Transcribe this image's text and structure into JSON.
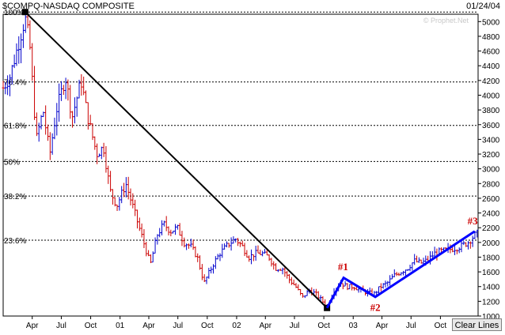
{
  "header": {
    "symbol_title": "$COMPQ-NASDAQ COMPOSITE",
    "date": "01/24/04",
    "watermark": "© Prophet.Net"
  },
  "toolbar": {
    "clear_lines_label": "Clear Lines"
  },
  "colors": {
    "up_bar": "#0000cc",
    "down_bar": "#cc0000",
    "trendline": "#000000",
    "pattern_line": "#0000ff",
    "annotation": "#cc0000",
    "grid": "#000000"
  },
  "chart_data": {
    "type": "bar",
    "subtype": "ohlc",
    "title": "$COMPQ-NASDAQ COMPOSITE",
    "ylim": [
      1000,
      5100
    ],
    "y_ticks": [
      1000,
      1200,
      1400,
      1600,
      1800,
      2000,
      2200,
      2400,
      2600,
      2800,
      3000,
      3200,
      3400,
      3600,
      3800,
      4000,
      4200,
      4400,
      4600,
      4800,
      5000
    ],
    "x_ticks": [
      {
        "label": "Apr",
        "date": "2000-04-01"
      },
      {
        "label": "Jul",
        "date": "2000-07-01"
      },
      {
        "label": "Oct",
        "date": "2000-10-01"
      },
      {
        "label": "01",
        "date": "2001-01-01"
      },
      {
        "label": "Apr",
        "date": "2001-04-01"
      },
      {
        "label": "Jul",
        "date": "2001-07-01"
      },
      {
        "label": "Oct",
        "date": "2001-10-01"
      },
      {
        "label": "02",
        "date": "2002-01-01"
      },
      {
        "label": "Apr",
        "date": "2002-04-01"
      },
      {
        "label": "Jul",
        "date": "2002-07-01"
      },
      {
        "label": "Oct",
        "date": "2002-10-01"
      },
      {
        "label": "03",
        "date": "2003-01-01"
      },
      {
        "label": "Apr",
        "date": "2003-04-01"
      },
      {
        "label": "Jul",
        "date": "2003-07-01"
      },
      {
        "label": "Oct",
        "date": "2003-10-01"
      }
    ],
    "fib_levels": [
      {
        "label": "100%",
        "value": 5130
      },
      {
        "label": "76.4%",
        "value": 4180
      },
      {
        "label": "61.8%",
        "value": 3590
      },
      {
        "label": "50%",
        "value": 3100
      },
      {
        "label": "38.2%",
        "value": 2630
      },
      {
        "label": "23.6%",
        "value": 2030
      }
    ],
    "price_path": [
      [
        "2000-01-01",
        4100
      ],
      [
        "2000-01-22",
        4250
      ],
      [
        "2000-02-12",
        4600
      ],
      [
        "2000-03-10",
        5050
      ],
      [
        "2000-03-24",
        4700
      ],
      [
        "2000-04-14",
        3400
      ],
      [
        "2000-05-05",
        3800
      ],
      [
        "2000-05-26",
        3200
      ],
      [
        "2000-06-16",
        3800
      ],
      [
        "2000-07-14",
        4250
      ],
      [
        "2000-08-04",
        3700
      ],
      [
        "2000-09-01",
        4200
      ],
      [
        "2000-09-22",
        3700
      ],
      [
        "2000-10-20",
        3200
      ],
      [
        "2000-11-10",
        3300
      ],
      [
        "2000-12-01",
        2700
      ],
      [
        "2000-12-22",
        2500
      ],
      [
        "2001-01-19",
        2800
      ],
      [
        "2001-02-09",
        2500
      ],
      [
        "2001-03-02",
        2200
      ],
      [
        "2001-03-23",
        1900
      ],
      [
        "2001-04-06",
        1700
      ],
      [
        "2001-04-27",
        2100
      ],
      [
        "2001-05-18",
        2250
      ],
      [
        "2001-06-08",
        2150
      ],
      [
        "2001-06-29",
        2200
      ],
      [
        "2001-07-20",
        2000
      ],
      [
        "2001-08-10",
        1950
      ],
      [
        "2001-08-31",
        1800
      ],
      [
        "2001-09-21",
        1450
      ],
      [
        "2001-10-19",
        1700
      ],
      [
        "2001-11-09",
        1850
      ],
      [
        "2001-11-30",
        1950
      ],
      [
        "2001-12-28",
        2050
      ],
      [
        "2002-01-18",
        1950
      ],
      [
        "2002-02-08",
        1800
      ],
      [
        "2002-03-01",
        1850
      ],
      [
        "2002-03-22",
        1850
      ],
      [
        "2002-04-12",
        1800
      ],
      [
        "2002-05-03",
        1650
      ],
      [
        "2002-05-24",
        1650
      ],
      [
        "2002-06-14",
        1500
      ],
      [
        "2002-07-05",
        1400
      ],
      [
        "2002-07-26",
        1250
      ],
      [
        "2002-08-16",
        1350
      ],
      [
        "2002-09-06",
        1300
      ],
      [
        "2002-09-27",
        1200
      ],
      [
        "2002-10-11",
        1130
      ],
      [
        "2002-11-01",
        1350
      ],
      [
        "2002-11-22",
        1450
      ],
      [
        "2002-12-13",
        1400
      ],
      [
        "2003-01-03",
        1400
      ],
      [
        "2003-01-24",
        1350
      ],
      [
        "2003-02-14",
        1320
      ],
      [
        "2003-03-07",
        1300
      ],
      [
        "2003-03-28",
        1400
      ],
      [
        "2003-04-18",
        1450
      ],
      [
        "2003-05-09",
        1550
      ],
      [
        "2003-05-30",
        1600
      ],
      [
        "2003-06-20",
        1650
      ],
      [
        "2003-07-11",
        1750
      ],
      [
        "2003-08-01",
        1720
      ],
      [
        "2003-08-22",
        1760
      ],
      [
        "2003-09-12",
        1850
      ],
      [
        "2003-10-03",
        1880
      ],
      [
        "2003-10-24",
        1900
      ],
      [
        "2003-11-14",
        1920
      ],
      [
        "2003-12-05",
        1950
      ],
      [
        "2003-12-26",
        2000
      ],
      [
        "2004-01-16",
        2100
      ],
      [
        "2004-01-23",
        2120
      ]
    ],
    "trendline": [
      [
        "2000-03-10",
        5130
      ],
      [
        "2002-10-11",
        1110
      ]
    ],
    "pattern_line": [
      [
        "2002-10-11",
        1110
      ],
      [
        "2002-12-02",
        1520
      ],
      [
        "2003-03-11",
        1260
      ],
      [
        "2004-01-16",
        2150
      ]
    ],
    "annotations": [
      {
        "label": "#1",
        "date": "2002-11-30",
        "value": 1580,
        "anchor": "above"
      },
      {
        "label": "#2",
        "date": "2003-03-11",
        "value": 1220,
        "anchor": "below"
      },
      {
        "label": "#3",
        "date": "2004-01-10",
        "value": 2200,
        "anchor": "above"
      }
    ]
  }
}
